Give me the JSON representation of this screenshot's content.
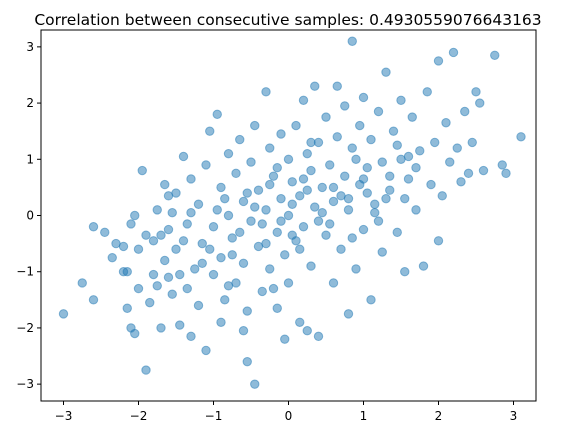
{
  "chart_data": {
    "type": "scatter",
    "title": "Correlation between consecutive samples: 0.4930559076643163",
    "xlabel": "",
    "ylabel": "",
    "xlim": [
      -3.3,
      3.3
    ],
    "ylim": [
      -3.3,
      3.3
    ],
    "xticks": [
      -3,
      -2,
      -1,
      0,
      1,
      2,
      3
    ],
    "yticks": [
      -3,
      -2,
      -1,
      0,
      1,
      2,
      3
    ],
    "xtick_labels": [
      "−3",
      "−2",
      "−1",
      "0",
      "1",
      "2",
      "3"
    ],
    "ytick_labels": [
      "−3",
      "−2",
      "−1",
      "0",
      "1",
      "2",
      "3"
    ],
    "grid": false,
    "legend": "none",
    "n_points": 1000,
    "correlation": 0.4930559076643163,
    "marker_color": "#1f77b4",
    "marker_alpha": 0.5,
    "points": [
      [
        -3.0,
        -1.75
      ],
      [
        -2.75,
        -1.2
      ],
      [
        -2.6,
        -1.5
      ],
      [
        -2.6,
        -0.2
      ],
      [
        -2.45,
        -0.3
      ],
      [
        -2.2,
        -0.55
      ],
      [
        -2.2,
        -1.0
      ],
      [
        -2.15,
        -1.0
      ],
      [
        -2.15,
        -1.65
      ],
      [
        -2.1,
        -2.0
      ],
      [
        -2.05,
        0.0
      ],
      [
        -2.05,
        -2.1
      ],
      [
        -2.1,
        -0.15
      ],
      [
        -2.0,
        -0.6
      ],
      [
        -1.95,
        0.8
      ],
      [
        -1.9,
        -2.75
      ],
      [
        -1.85,
        -1.55
      ],
      [
        -1.8,
        -0.45
      ],
      [
        -1.75,
        -1.25
      ],
      [
        -1.75,
        0.1
      ],
      [
        -1.7,
        -0.35
      ],
      [
        -1.7,
        -2.0
      ],
      [
        -1.65,
        0.55
      ],
      [
        -1.65,
        -0.8
      ],
      [
        -1.6,
        -1.1
      ],
      [
        -1.55,
        0.05
      ],
      [
        -1.55,
        -1.4
      ],
      [
        -1.5,
        0.4
      ],
      [
        -1.5,
        -0.6
      ],
      [
        -1.45,
        -1.95
      ],
      [
        -1.4,
        1.05
      ],
      [
        -1.35,
        -0.15
      ],
      [
        -1.35,
        -1.3
      ],
      [
        -1.3,
        0.65
      ],
      [
        -1.25,
        -0.95
      ],
      [
        -1.2,
        0.2
      ],
      [
        -1.2,
        -1.6
      ],
      [
        -1.15,
        -0.5
      ],
      [
        -1.1,
        0.9
      ],
      [
        -1.1,
        -2.4
      ],
      [
        -1.05,
        1.5
      ],
      [
        -1.0,
        -0.2
      ],
      [
        -1.0,
        -1.05
      ],
      [
        -0.95,
        1.8
      ],
      [
        -0.9,
        0.5
      ],
      [
        -0.9,
        -0.75
      ],
      [
        -0.85,
        -1.5
      ],
      [
        -0.8,
        1.1
      ],
      [
        -0.8,
        0.0
      ],
      [
        -0.75,
        -0.4
      ],
      [
        -0.7,
        0.75
      ],
      [
        -0.7,
        -1.2
      ],
      [
        -0.65,
        1.35
      ],
      [
        -0.6,
        0.25
      ],
      [
        -0.6,
        -0.85
      ],
      [
        -0.55,
        -1.7
      ],
      [
        -0.55,
        -2.6
      ],
      [
        -0.5,
        0.95
      ],
      [
        -0.5,
        -0.1
      ],
      [
        -0.45,
        -3.0
      ],
      [
        -0.45,
        1.6
      ],
      [
        -0.4,
        0.45
      ],
      [
        -0.4,
        -0.55
      ],
      [
        -0.35,
        -1.35
      ],
      [
        -0.3,
        2.2
      ],
      [
        -0.3,
        0.1
      ],
      [
        -0.25,
        -0.95
      ],
      [
        -0.25,
        1.2
      ],
      [
        -0.2,
        0.7
      ],
      [
        -0.15,
        -0.3
      ],
      [
        -0.15,
        -1.65
      ],
      [
        -0.1,
        1.45
      ],
      [
        -0.1,
        0.3
      ],
      [
        -0.05,
        -0.7
      ],
      [
        0.0,
        0.0
      ],
      [
        0.0,
        1.0
      ],
      [
        0.0,
        -1.2
      ],
      [
        0.05,
        0.6
      ],
      [
        0.1,
        -0.45
      ],
      [
        0.1,
        1.6
      ],
      [
        0.15,
        -1.9
      ],
      [
        0.15,
        0.35
      ],
      [
        0.2,
        2.05
      ],
      [
        0.2,
        -0.2
      ],
      [
        0.25,
        1.1
      ],
      [
        0.3,
        0.8
      ],
      [
        0.3,
        -0.9
      ],
      [
        0.35,
        2.3
      ],
      [
        0.35,
        0.15
      ],
      [
        0.4,
        -2.15
      ],
      [
        0.4,
        1.3
      ],
      [
        0.45,
        0.5
      ],
      [
        0.5,
        -0.35
      ],
      [
        0.5,
        1.75
      ],
      [
        0.55,
        0.9
      ],
      [
        0.6,
        -1.2
      ],
      [
        0.6,
        0.25
      ],
      [
        0.65,
        2.3
      ],
      [
        0.65,
        1.4
      ],
      [
        0.7,
        -0.6
      ],
      [
        0.75,
        0.7
      ],
      [
        0.75,
        1.95
      ],
      [
        0.8,
        -1.75
      ],
      [
        0.8,
        0.1
      ],
      [
        0.85,
        3.1
      ],
      [
        0.85,
        1.2
      ],
      [
        0.9,
        -0.95
      ],
      [
        0.95,
        0.55
      ],
      [
        0.95,
        1.6
      ],
      [
        1.0,
        -0.25
      ],
      [
        1.0,
        2.1
      ],
      [
        1.05,
        0.85
      ],
      [
        1.1,
        -1.5
      ],
      [
        1.1,
        1.35
      ],
      [
        1.15,
        0.2
      ],
      [
        1.2,
        1.85
      ],
      [
        1.25,
        -0.65
      ],
      [
        1.25,
        0.95
      ],
      [
        1.3,
        2.55
      ],
      [
        1.35,
        0.45
      ],
      [
        1.4,
        1.5
      ],
      [
        1.45,
        -0.3
      ],
      [
        1.5,
        2.05
      ],
      [
        1.5,
        1.0
      ],
      [
        1.55,
        -1.0
      ],
      [
        1.6,
        0.65
      ],
      [
        1.65,
        1.75
      ],
      [
        1.7,
        0.1
      ],
      [
        1.75,
        1.15
      ],
      [
        1.8,
        -0.9
      ],
      [
        1.85,
        2.2
      ],
      [
        1.9,
        0.55
      ],
      [
        1.95,
        1.3
      ],
      [
        2.0,
        -0.45
      ],
      [
        2.0,
        2.75
      ],
      [
        2.05,
        0.35
      ],
      [
        2.1,
        1.65
      ],
      [
        2.15,
        0.95
      ],
      [
        2.2,
        2.9
      ],
      [
        2.25,
        1.2
      ],
      [
        2.3,
        0.6
      ],
      [
        2.35,
        1.85
      ],
      [
        2.45,
        1.3
      ],
      [
        2.5,
        2.2
      ],
      [
        2.55,
        2.0
      ],
      [
        2.6,
        0.8
      ],
      [
        2.75,
        2.85
      ],
      [
        2.85,
        0.9
      ],
      [
        2.9,
        0.75
      ],
      [
        3.1,
        1.4
      ],
      [
        -0.9,
        -1.9
      ],
      [
        -0.6,
        -2.05
      ],
      [
        -1.3,
        -2.15
      ],
      [
        0.25,
        -2.05
      ],
      [
        -0.05,
        -2.2
      ],
      [
        -2.0,
        -1.3
      ],
      [
        -1.8,
        -1.05
      ],
      [
        -2.35,
        -0.75
      ],
      [
        -1.9,
        -0.35
      ],
      [
        -1.6,
        0.35
      ],
      [
        -1.3,
        0.05
      ],
      [
        -1.05,
        -0.6
      ],
      [
        -0.85,
        0.3
      ],
      [
        -0.65,
        -0.3
      ],
      [
        -0.45,
        0.15
      ],
      [
        -0.35,
        -0.15
      ],
      [
        -0.25,
        0.55
      ],
      [
        -0.1,
        -0.1
      ],
      [
        0.05,
        0.2
      ],
      [
        0.15,
        -0.6
      ],
      [
        0.25,
        0.45
      ],
      [
        0.45,
        0.05
      ],
      [
        0.55,
        -0.15
      ],
      [
        0.7,
        0.35
      ],
      [
        0.85,
        -0.4
      ],
      [
        1.05,
        0.4
      ],
      [
        1.2,
        -0.1
      ],
      [
        1.35,
        0.7
      ],
      [
        1.55,
        0.3
      ],
      [
        1.7,
        0.85
      ],
      [
        -1.4,
        -0.45
      ],
      [
        -1.15,
        -0.85
      ],
      [
        -0.95,
        0.1
      ],
      [
        -0.75,
        -0.7
      ],
      [
        -0.55,
        0.4
      ],
      [
        -0.3,
        -0.5
      ],
      [
        -0.15,
        0.85
      ],
      [
        0.05,
        -0.35
      ],
      [
        0.2,
        0.65
      ],
      [
        0.4,
        -0.1
      ],
      [
        0.6,
        0.5
      ],
      [
        0.8,
        0.3
      ],
      [
        1.0,
        0.65
      ],
      [
        1.15,
        0.05
      ],
      [
        1.3,
        0.3
      ],
      [
        -2.3,
        -0.5
      ],
      [
        2.4,
        0.75
      ],
      [
        -1.45,
        -1.05
      ],
      [
        1.45,
        1.25
      ],
      [
        -0.2,
        -1.3
      ],
      [
        0.3,
        1.3
      ],
      [
        -0.8,
        -1.25
      ],
      [
        0.9,
        1.0
      ],
      [
        -1.6,
        -0.25
      ],
      [
        1.6,
        1.05
      ]
    ]
  }
}
